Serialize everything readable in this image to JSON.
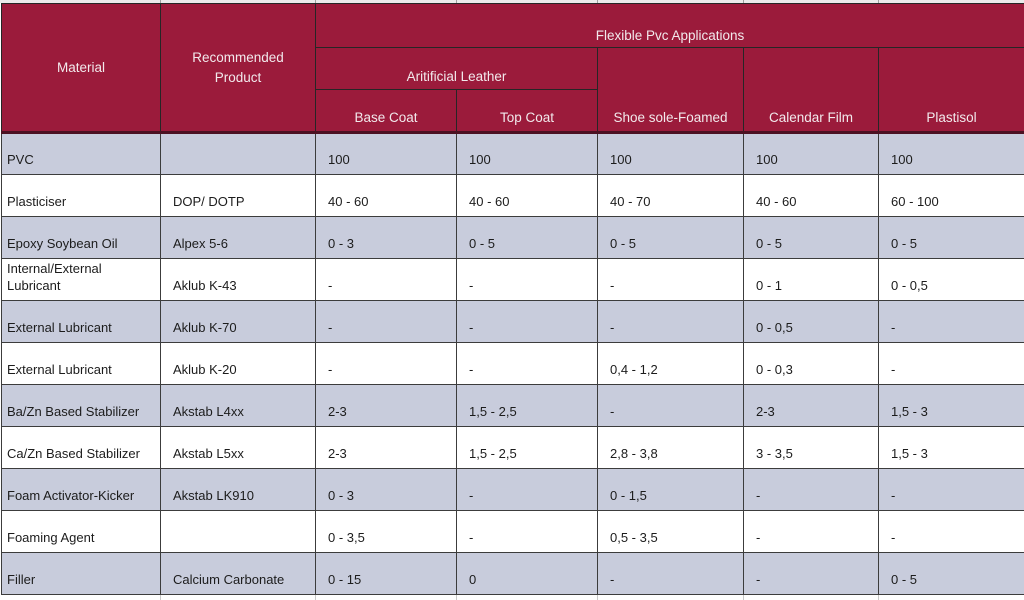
{
  "table": {
    "title_group": "Flexible Pvc Applications",
    "header": {
      "material": "Material",
      "recommended_product": "Recommended Product",
      "applications_group": "Flexible Pvc Applications",
      "artificial_leather_group": "Aritificial Leather",
      "columns": [
        "Base Coat",
        "Top Coat",
        "Shoe sole-Foamed",
        "Calendar Film",
        "Plastisol"
      ]
    },
    "rows": [
      {
        "material": "PVC",
        "product": "",
        "values": [
          "100",
          "100",
          "100",
          "100",
          "100"
        ]
      },
      {
        "material": "Plasticiser",
        "product": "DOP/ DOTP",
        "values": [
          "40 - 60",
          "40 - 60",
          "40 - 70",
          "40 - 60",
          "60 - 100"
        ]
      },
      {
        "material": "Epoxy Soybean Oil",
        "product": "Alpex 5-6",
        "values": [
          "0 - 3",
          "0 - 5",
          "0 - 5",
          "0 - 5",
          "0 - 5"
        ]
      },
      {
        "material": "Internal/External Lubricant",
        "product": "Aklub K-43",
        "values": [
          "-",
          "-",
          "-",
          "0 - 1",
          "0 - 0,5"
        ]
      },
      {
        "material": "External Lubricant",
        "product": "Aklub K-70",
        "values": [
          "-",
          "-",
          "-",
          "0 - 0,5",
          "-"
        ]
      },
      {
        "material": "External Lubricant",
        "product": "Aklub K-20",
        "values": [
          "-",
          "-",
          "0,4 - 1,2",
          "0 - 0,3",
          "-"
        ]
      },
      {
        "material": "Ba/Zn Based Stabilizer",
        "product": "Akstab L4xx",
        "values": [
          "2-3",
          "1,5 - 2,5",
          "-",
          "2-3",
          "1,5 - 3"
        ]
      },
      {
        "material": "Ca/Zn Based Stabilizer",
        "product": "Akstab L5xx",
        "values": [
          "2-3",
          "1,5 - 2,5",
          "2,8 - 3,8",
          "3 - 3,5",
          "1,5 - 3"
        ]
      },
      {
        "material": "Foam Activator-Kicker",
        "product": "Akstab LK910",
        "values": [
          "0 - 3",
          "-",
          "0 - 1,5",
          "-",
          "-"
        ]
      },
      {
        "material": "Foaming Agent",
        "product": "",
        "values": [
          "0 - 3,5",
          "-",
          "0,5 - 3,5",
          "-",
          "-"
        ]
      },
      {
        "material": "Filler",
        "product": "Calcium Carbonate",
        "values": [
          "0 - 15",
          "0",
          "-",
          "-",
          "0 - 5"
        ]
      }
    ],
    "colors": {
      "header_bg": "#9B1B3B",
      "header_text": "#F2E9EC",
      "alt_row_bg": "#C8CCDC",
      "row_bg": "#FFFFFF",
      "grid_border": "#3c3c3c",
      "header_divider": "#4b1122"
    }
  }
}
